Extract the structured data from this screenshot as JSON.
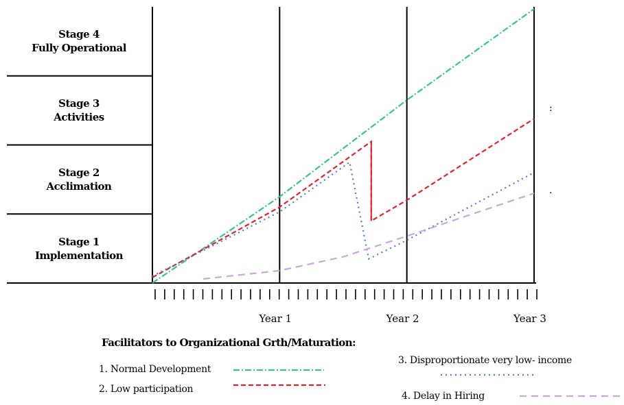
{
  "chart_data": {
    "type": "line",
    "y_categories": [
      {
        "line1": "Stage 1",
        "line2": "Implementation"
      },
      {
        "line1": "Stage 2",
        "line2": "Acclimation"
      },
      {
        "line1": "Stage 3",
        "line2": "Activities"
      },
      {
        "line1": "Stage 4",
        "line2": "Fully Operational"
      }
    ],
    "x_labels": [
      {
        "x": 1,
        "label": "Year 1"
      },
      {
        "x": 2,
        "label": "Year 2"
      },
      {
        "x": 3,
        "label": "Year 3"
      }
    ],
    "xlim": [
      0,
      3
    ],
    "ylim": [
      0,
      4
    ],
    "legend_title": "Facilitators to Organizational Grth/Maturation:",
    "series": [
      {
        "name": "1. Normal Development",
        "color": "#2ec98a",
        "dash": "dashdot",
        "points": [
          [
            0,
            0
          ],
          [
            1,
            1.25
          ],
          [
            2,
            2.65
          ],
          [
            3,
            3.97
          ]
        ]
      },
      {
        "name": "2. Low participation",
        "color": "#e0242c",
        "dash": "dashed",
        "points": [
          [
            0,
            0.08
          ],
          [
            1,
            1.1
          ],
          [
            1.72,
            2.05
          ],
          [
            1.72,
            0.9
          ],
          [
            2,
            1.2
          ],
          [
            3,
            2.38
          ]
        ]
      },
      {
        "name": "3. Disproportionate very low- income",
        "color": "#5577d6",
        "dash": "dotted",
        "points": [
          [
            0,
            0.1
          ],
          [
            1,
            1.03
          ],
          [
            1.55,
            1.75
          ],
          [
            1.7,
            0.35
          ],
          [
            2,
            0.62
          ],
          [
            3,
            1.6
          ]
        ]
      },
      {
        "name": "4. Delay in Hiring",
        "color": "#c7a6e6",
        "dash": "longdash",
        "points": [
          [
            0.4,
            0.06
          ],
          [
            1,
            0.18
          ],
          [
            1.5,
            0.38
          ],
          [
            2,
            0.68
          ],
          [
            3,
            1.3
          ]
        ]
      }
    ],
    "annotations": [
      ":",
      "."
    ]
  }
}
